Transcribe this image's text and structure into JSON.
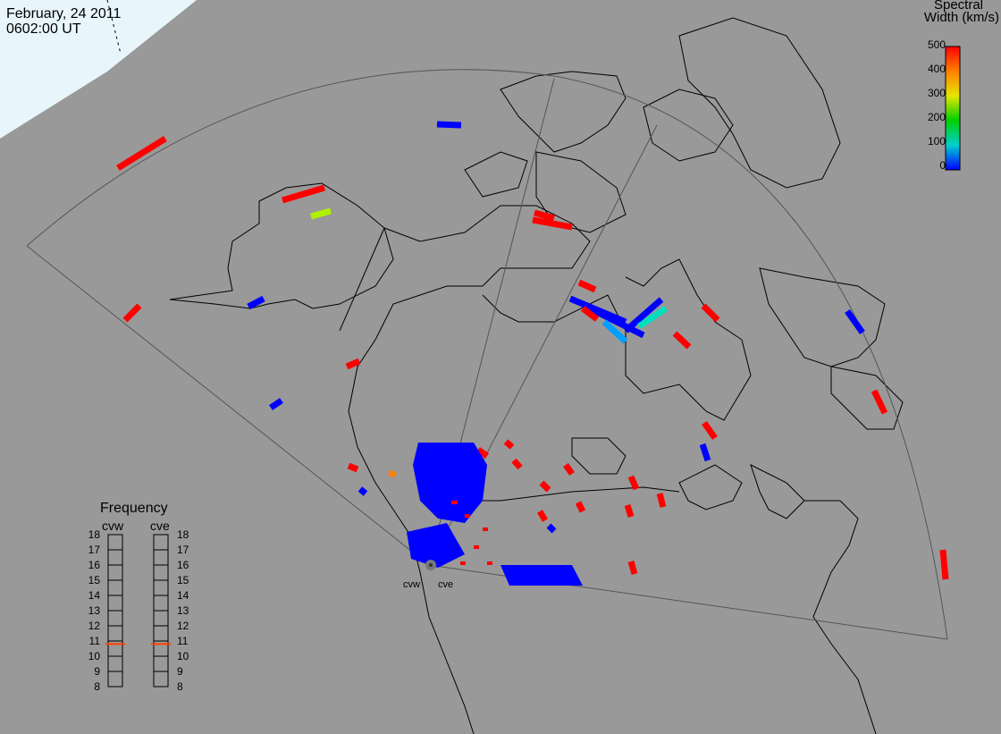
{
  "header": {
    "date": "February, 24 2011",
    "time": "0602:00 UT"
  },
  "colorbar": {
    "title_line1": "Spectral",
    "title_line2": "Width (km/s)",
    "labels": [
      "500",
      "400",
      "300",
      "200",
      "100",
      "0"
    ],
    "colors": [
      "#ff0000",
      "#ffa000",
      "#e6e600",
      "#00d000",
      "#00d0d0",
      "#0000ff"
    ]
  },
  "frequency_panel": {
    "title": "Frequency",
    "radars": [
      "cvw",
      "cve"
    ],
    "ticks": [
      "18",
      "17",
      "16",
      "15",
      "14",
      "13",
      "12",
      "11",
      "10",
      "9",
      "8"
    ],
    "cvw_value_mhz": 10.8,
    "cve_value_mhz": 10.8,
    "marker_color": "#ff4000"
  },
  "sites": {
    "west": "cvw",
    "east": "cve"
  },
  "colors": {
    "background": "#999999",
    "coast": "#000000",
    "fov": "#555555",
    "ice": "#e8f6fb"
  }
}
